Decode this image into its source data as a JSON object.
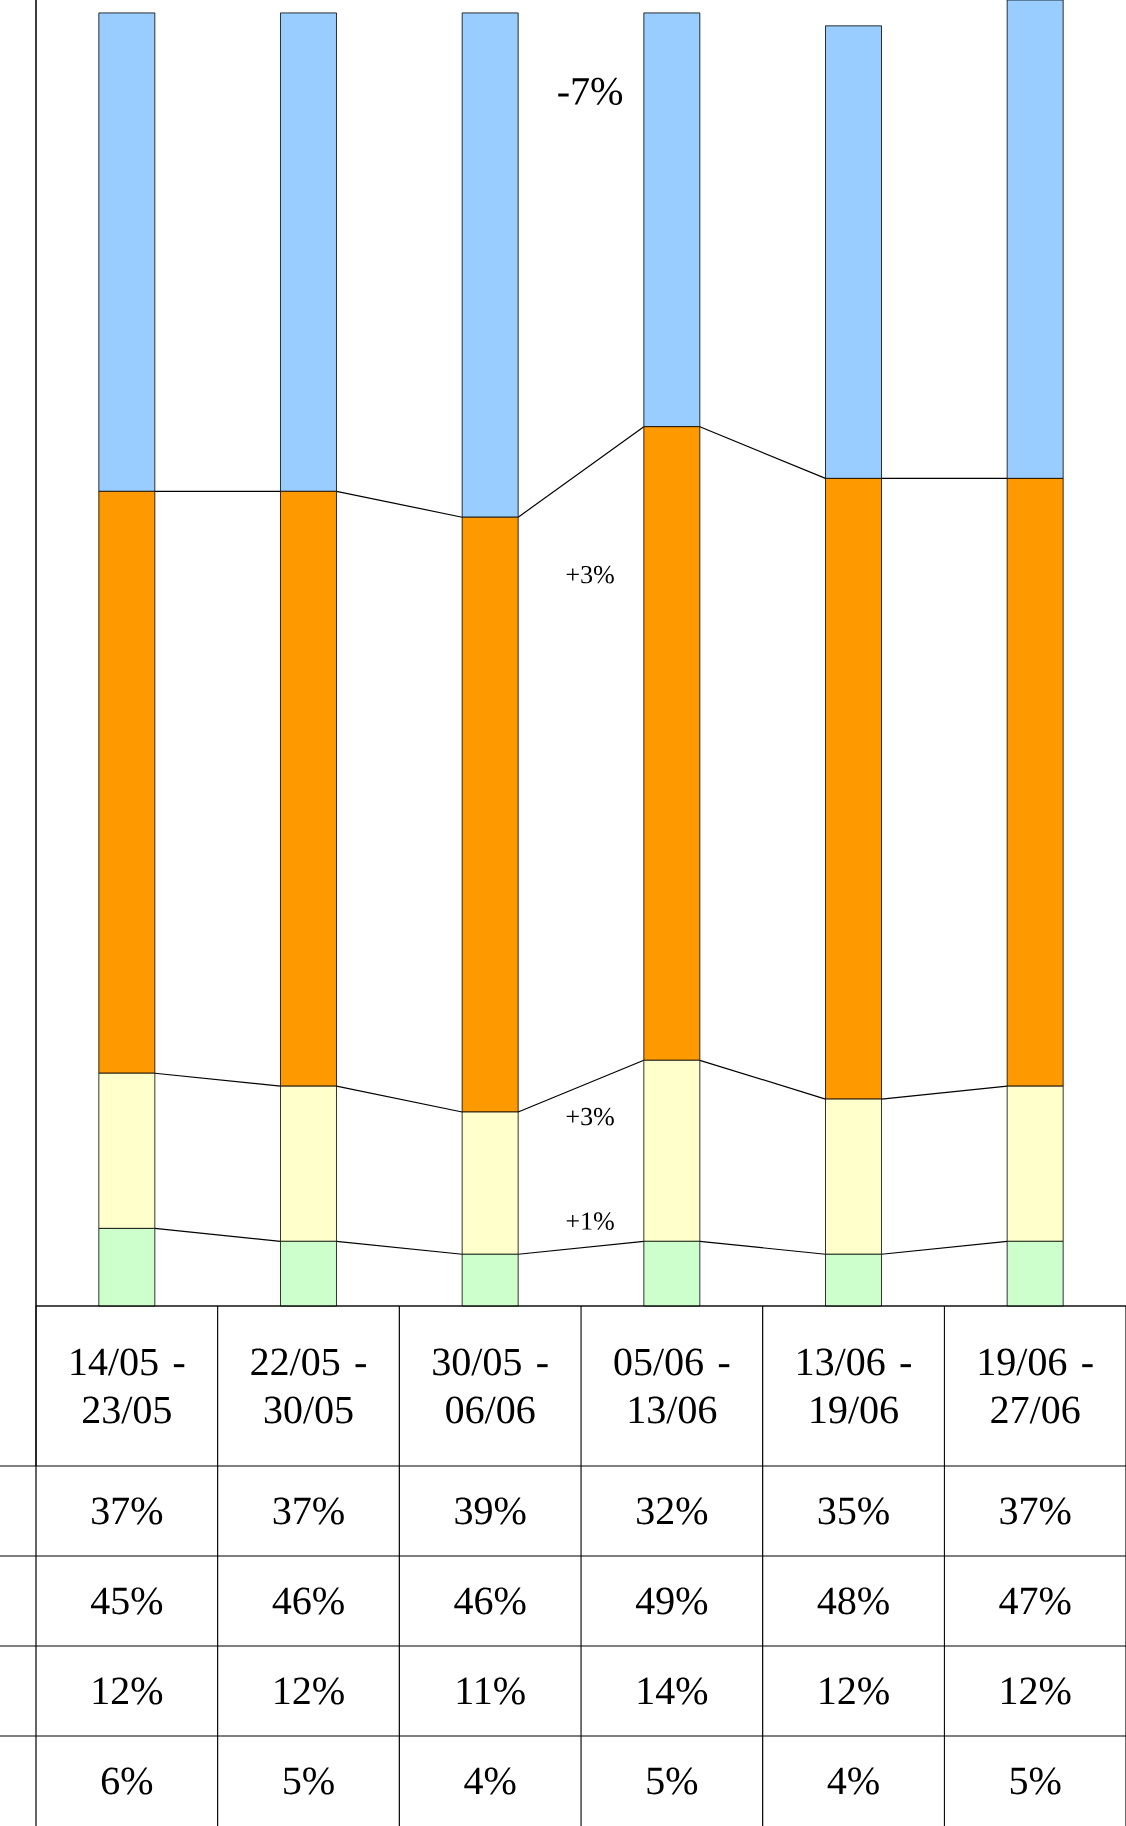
{
  "chart_data": {
    "type": "bar",
    "stacked": true,
    "categories": [
      "14/05 - 23/05",
      "22/05 - 30/05",
      "30/05 - 06/06",
      "05/06 - 13/06",
      "13/06 - 19/06",
      "19/06 - 27/06"
    ],
    "series": [
      {
        "color": "#ccffcc",
        "values": [
          6,
          5,
          4,
          5,
          4,
          5
        ],
        "value_labels": [
          "6%",
          "5%",
          "4%",
          "5%",
          "4%",
          "5%"
        ]
      },
      {
        "color": "#ffffcc",
        "values": [
          12,
          12,
          11,
          14,
          12,
          12
        ],
        "value_labels": [
          "12%",
          "12%",
          "11%",
          "14%",
          "12%",
          "12%"
        ]
      },
      {
        "color": "#ff9900",
        "values": [
          45,
          46,
          46,
          49,
          48,
          47
        ],
        "value_labels": [
          "45%",
          "46%",
          "46%",
          "49%",
          "48%",
          "47%"
        ]
      },
      {
        "color": "#99ccff",
        "values": [
          37,
          37,
          39,
          32,
          35,
          37
        ],
        "value_labels": [
          "37%",
          "37%",
          "39%",
          "32%",
          "35%",
          "37%"
        ]
      }
    ],
    "annotations": [
      "-7%",
      "+3%",
      "+3%",
      "+1%"
    ]
  }
}
